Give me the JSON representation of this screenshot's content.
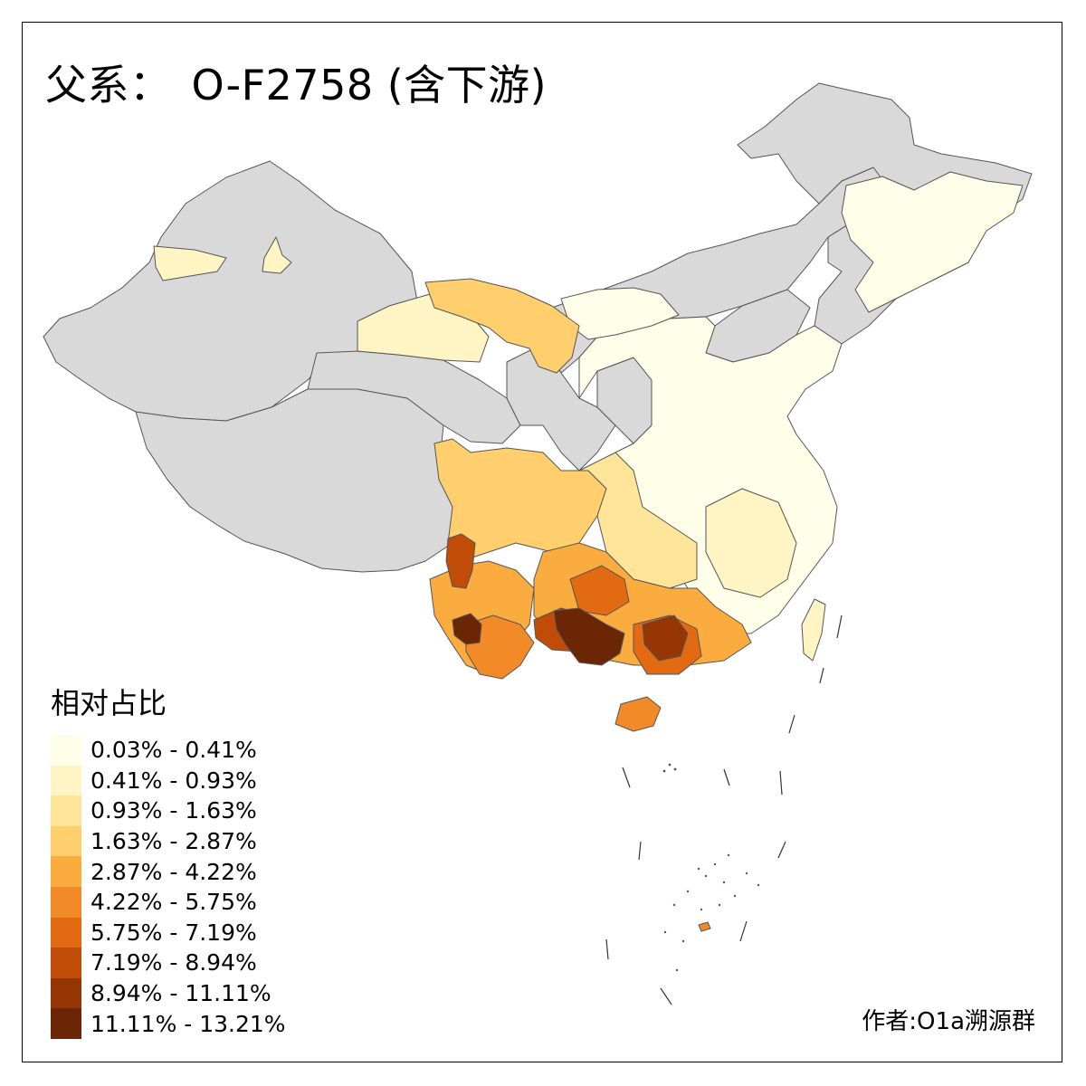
{
  "title": {
    "label": "父系：",
    "haplogroup": "O-F2758 (含下游)"
  },
  "legend": {
    "title": "相对占比",
    "items": [
      {
        "label": "0.03% - 0.41%",
        "color": "#FFFEE8"
      },
      {
        "label": "0.41% - 0.93%",
        "color": "#FFF4C4"
      },
      {
        "label": "0.93% - 1.63%",
        "color": "#FEE59A"
      },
      {
        "label": "1.63% - 2.87%",
        "color": "#FECF6C"
      },
      {
        "label": "2.87% - 4.22%",
        "color": "#FBAC3E"
      },
      {
        "label": "4.22% - 5.75%",
        "color": "#F38A28"
      },
      {
        "label": "5.75% - 7.19%",
        "color": "#E26A12"
      },
      {
        "label": "7.19% - 8.94%",
        "color": "#C04C07"
      },
      {
        "label": "8.94% - 11.11%",
        "color": "#963604"
      },
      {
        "label": "11.11% - 13.21%",
        "color": "#6A2605"
      }
    ]
  },
  "credit": "作者:O1a溯源群",
  "colors": {
    "no_data": "#D9D9D9",
    "border": "#555555"
  }
}
